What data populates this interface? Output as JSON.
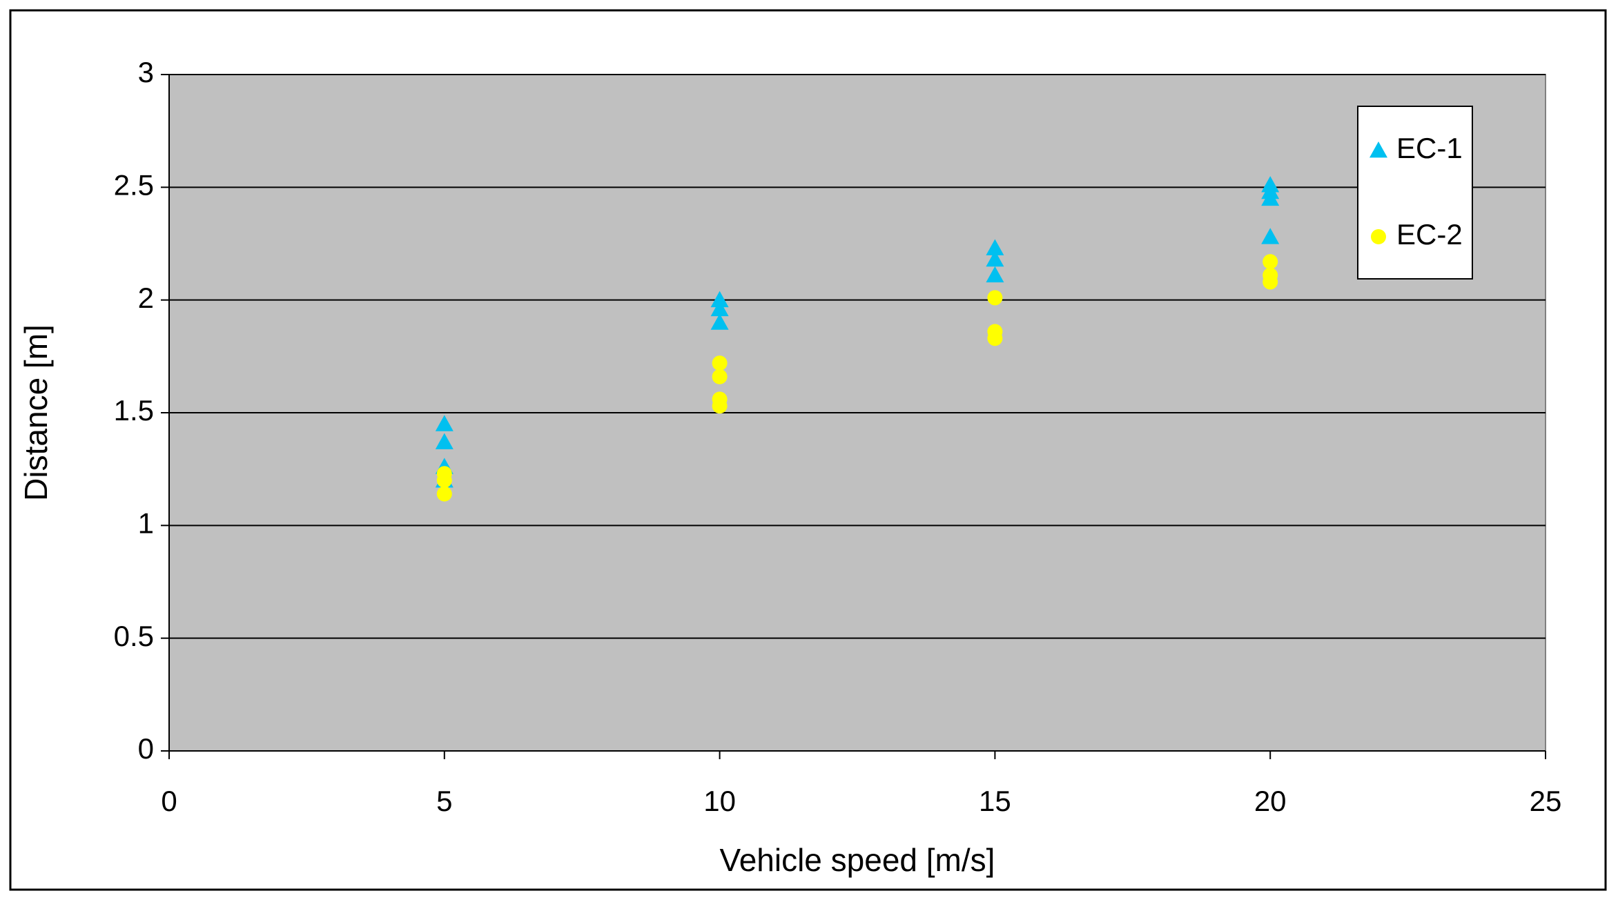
{
  "chart_data": {
    "type": "scatter",
    "x_label": "Vehicle speed [m/s]",
    "y_label": "Distance [m]",
    "xlim": [
      0,
      25
    ],
    "xticks": [
      0,
      5,
      10,
      15,
      20,
      25
    ],
    "ylim": [
      0,
      3
    ],
    "yticks": [
      0,
      0.5,
      1,
      1.5,
      2,
      2.5,
      3
    ],
    "grid": true,
    "legend": "top-right",
    "series": [
      {
        "name": "EC-1",
        "color": "#00c0f0",
        "marker": "triangle",
        "x": [
          5,
          5,
          5,
          5,
          10,
          10,
          10,
          15,
          15,
          15,
          20,
          20,
          20,
          20
        ],
        "values": [
          1.45,
          1.37,
          1.26,
          1.2,
          2.0,
          1.96,
          1.9,
          2.23,
          2.18,
          2.11,
          2.51,
          2.48,
          2.45,
          2.28
        ]
      },
      {
        "name": "EC-2",
        "color": "#ffff00",
        "marker": "circle",
        "x": [
          5,
          5,
          5,
          10,
          10,
          10,
          10,
          15,
          15,
          15,
          20,
          20,
          20
        ],
        "values": [
          1.23,
          1.2,
          1.14,
          1.72,
          1.66,
          1.56,
          1.53,
          2.01,
          1.86,
          1.83,
          2.17,
          2.11,
          2.08
        ]
      }
    ]
  }
}
